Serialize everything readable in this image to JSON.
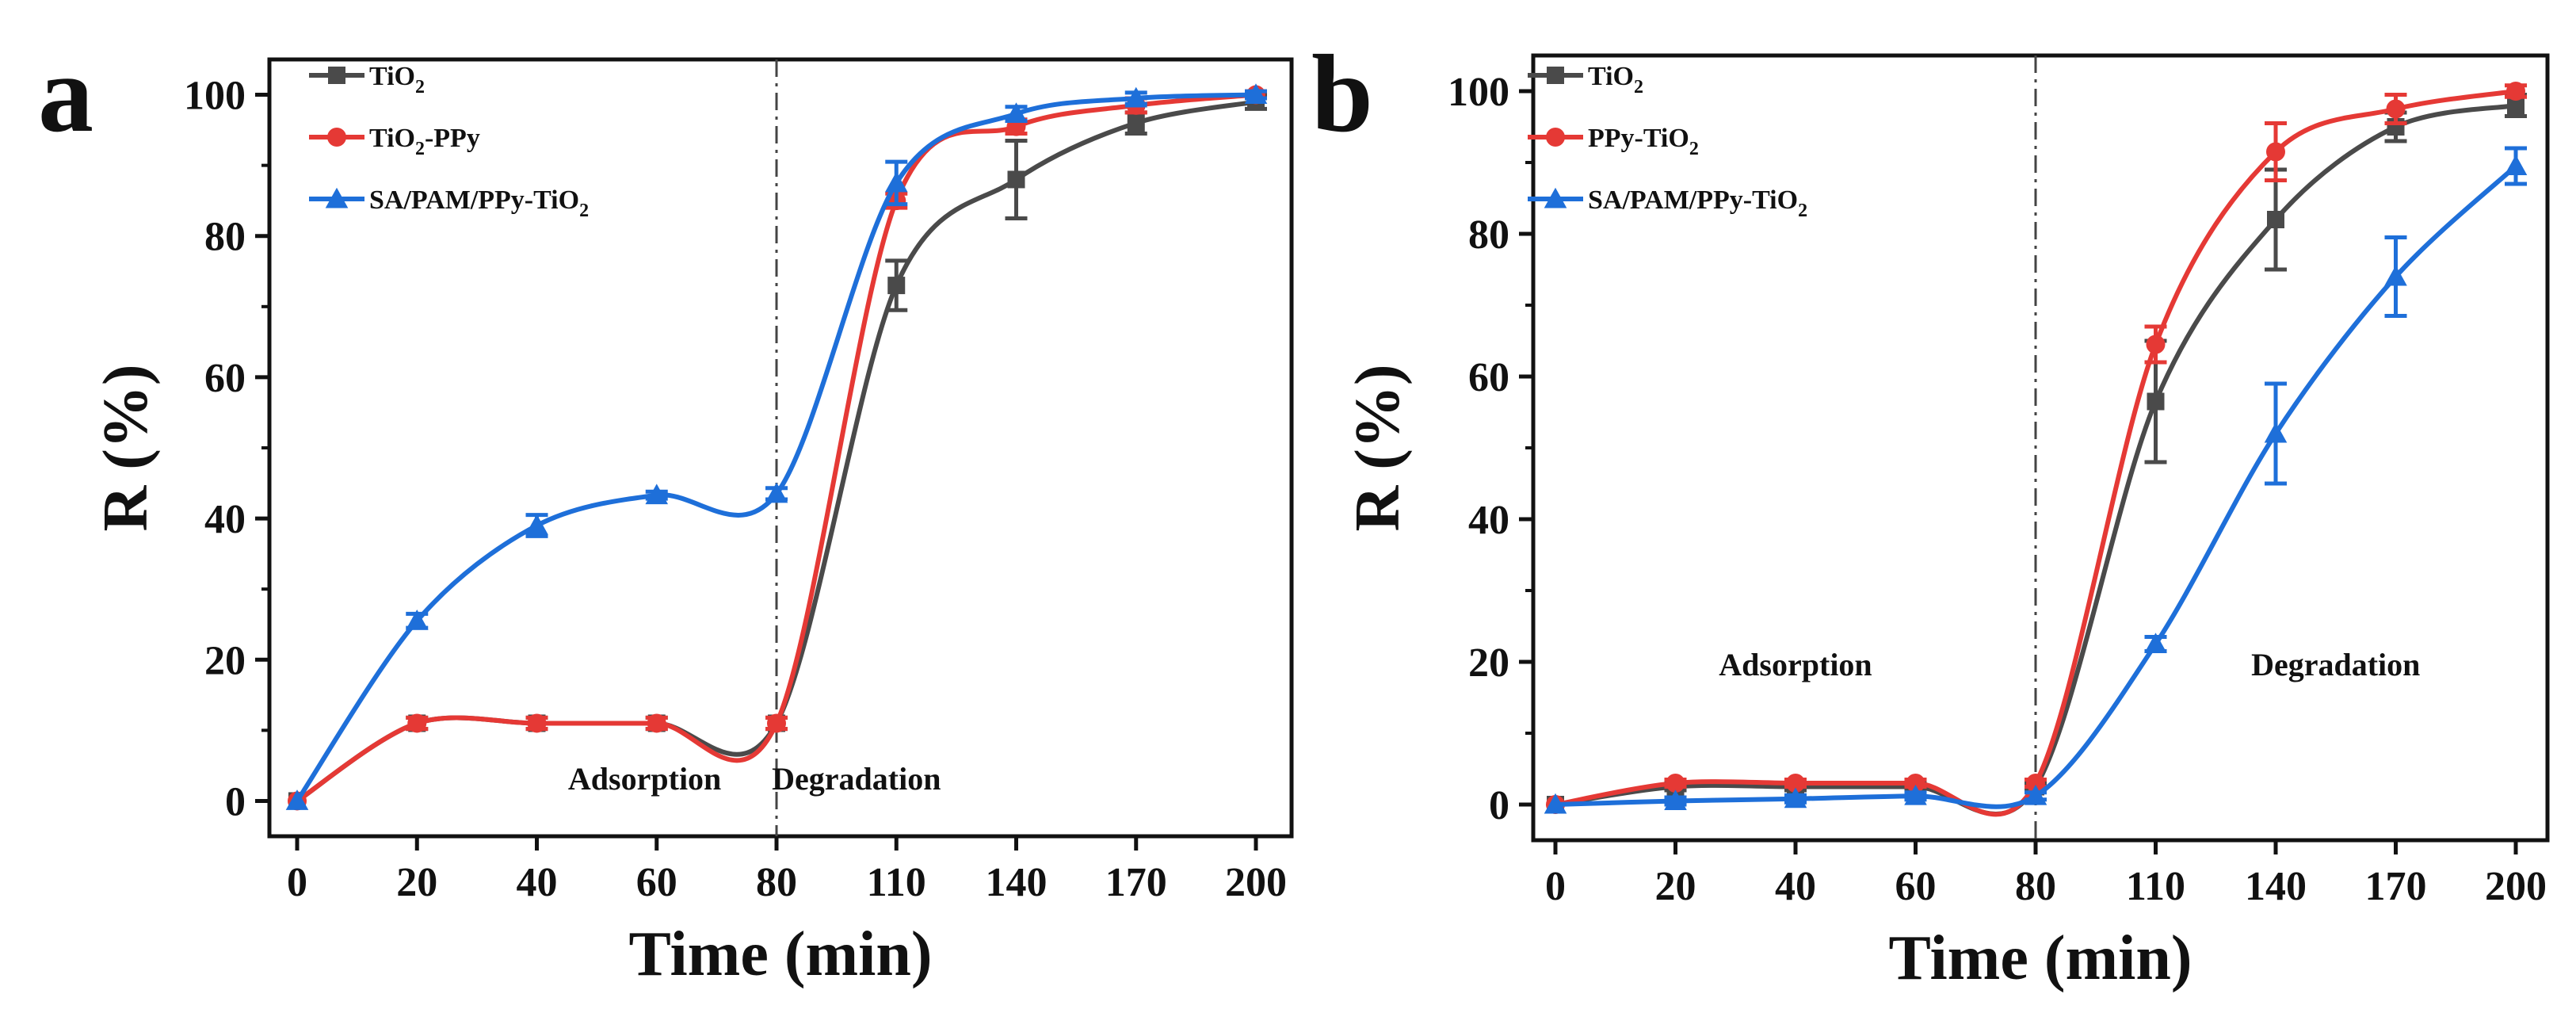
{
  "chart_data": [
    {
      "panel": "a",
      "type": "line",
      "xlabel": "Time (min)",
      "ylabel": "R (%)",
      "x": [
        0,
        20,
        40,
        60,
        80,
        110,
        140,
        170,
        200
      ],
      "x_tick_labels": [
        "0",
        "20",
        "40",
        "60",
        "80",
        "110",
        "140",
        "170",
        "200"
      ],
      "y_ticks": [
        0,
        20,
        40,
        60,
        80,
        100
      ],
      "ylim": [
        -5,
        105
      ],
      "divider_x": 80,
      "annotations": [
        {
          "text": "Adsorption",
          "x": 58,
          "y": 0.5
        },
        {
          "text": "Degradation",
          "x": 100,
          "y": 0.5
        }
      ],
      "legend_position": "top-left",
      "series": [
        {
          "name": "TiO",
          "sub": "2",
          "suffix": "",
          "color": "#4a4a4a",
          "marker": "square",
          "values": [
            0,
            11,
            11,
            11,
            11,
            73,
            88,
            96,
            99
          ],
          "errors": [
            0,
            0.8,
            0.8,
            0.8,
            0.8,
            3.5,
            5.5,
            1.5,
            1
          ]
        },
        {
          "name": "TiO",
          "sub": "2",
          "suffix": "-PPy",
          "color": "#e53935",
          "marker": "circle",
          "values": [
            0,
            11,
            11,
            11,
            11,
            85,
            95.5,
            98.5,
            100
          ],
          "errors": [
            0,
            0.8,
            0.8,
            0.8,
            0.8,
            1,
            1,
            1,
            0.5
          ]
        },
        {
          "name": "SA/PAM/PPy-TiO",
          "sub": "2",
          "suffix": "",
          "color": "#1e6fd9",
          "marker": "triangle",
          "values": [
            0,
            25.5,
            39,
            43.3,
            43.5,
            87.5,
            97.3,
            99.5,
            100
          ],
          "errors": [
            0,
            1,
            1.5,
            0.5,
            0.8,
            3,
            1,
            0.8,
            0.5
          ]
        }
      ]
    },
    {
      "panel": "b",
      "type": "line",
      "xlabel": "Time (min)",
      "ylabel": "R (%)",
      "x": [
        0,
        20,
        40,
        60,
        80,
        110,
        140,
        170,
        200
      ],
      "x_tick_labels": [
        "0",
        "20",
        "40",
        "60",
        "80",
        "110",
        "140",
        "170",
        "200"
      ],
      "y_ticks": [
        0,
        20,
        40,
        60,
        80,
        100
      ],
      "ylim": [
        -5,
        105
      ],
      "divider_x": 80,
      "annotations": [
        {
          "text": "Adsorption",
          "x": 40,
          "y": 17
        },
        {
          "text": "Degradation",
          "x": 155,
          "y": 17
        }
      ],
      "legend_position": "top-left",
      "series": [
        {
          "name": "TiO",
          "sub": "2",
          "suffix": "",
          "color": "#4a4a4a",
          "marker": "square",
          "values": [
            0,
            2.5,
            2.5,
            2.5,
            2.5,
            56.5,
            82,
            95,
            98
          ],
          "errors": [
            0,
            0.5,
            0.5,
            0.5,
            0.5,
            8.5,
            7,
            2,
            1.5
          ]
        },
        {
          "name": "PPy-TiO",
          "sub": "2",
          "suffix": "",
          "color": "#e53935",
          "marker": "circle",
          "values": [
            0,
            3,
            3,
            3,
            3,
            64.5,
            91.5,
            97.5,
            100
          ],
          "errors": [
            0,
            0.5,
            0.5,
            0.5,
            0.5,
            2.5,
            4,
            2,
            0.8
          ]
        },
        {
          "name": "SA/PAM/PPy-TiO",
          "sub": "2",
          "suffix": "",
          "color": "#1e6fd9",
          "marker": "triangle",
          "values": [
            0,
            0.5,
            0.8,
            1.2,
            1.2,
            22.5,
            52,
            74,
            89.5
          ],
          "errors": [
            0,
            0.5,
            0.5,
            0.5,
            0.5,
            1,
            7,
            5.5,
            2.5
          ]
        }
      ]
    }
  ]
}
